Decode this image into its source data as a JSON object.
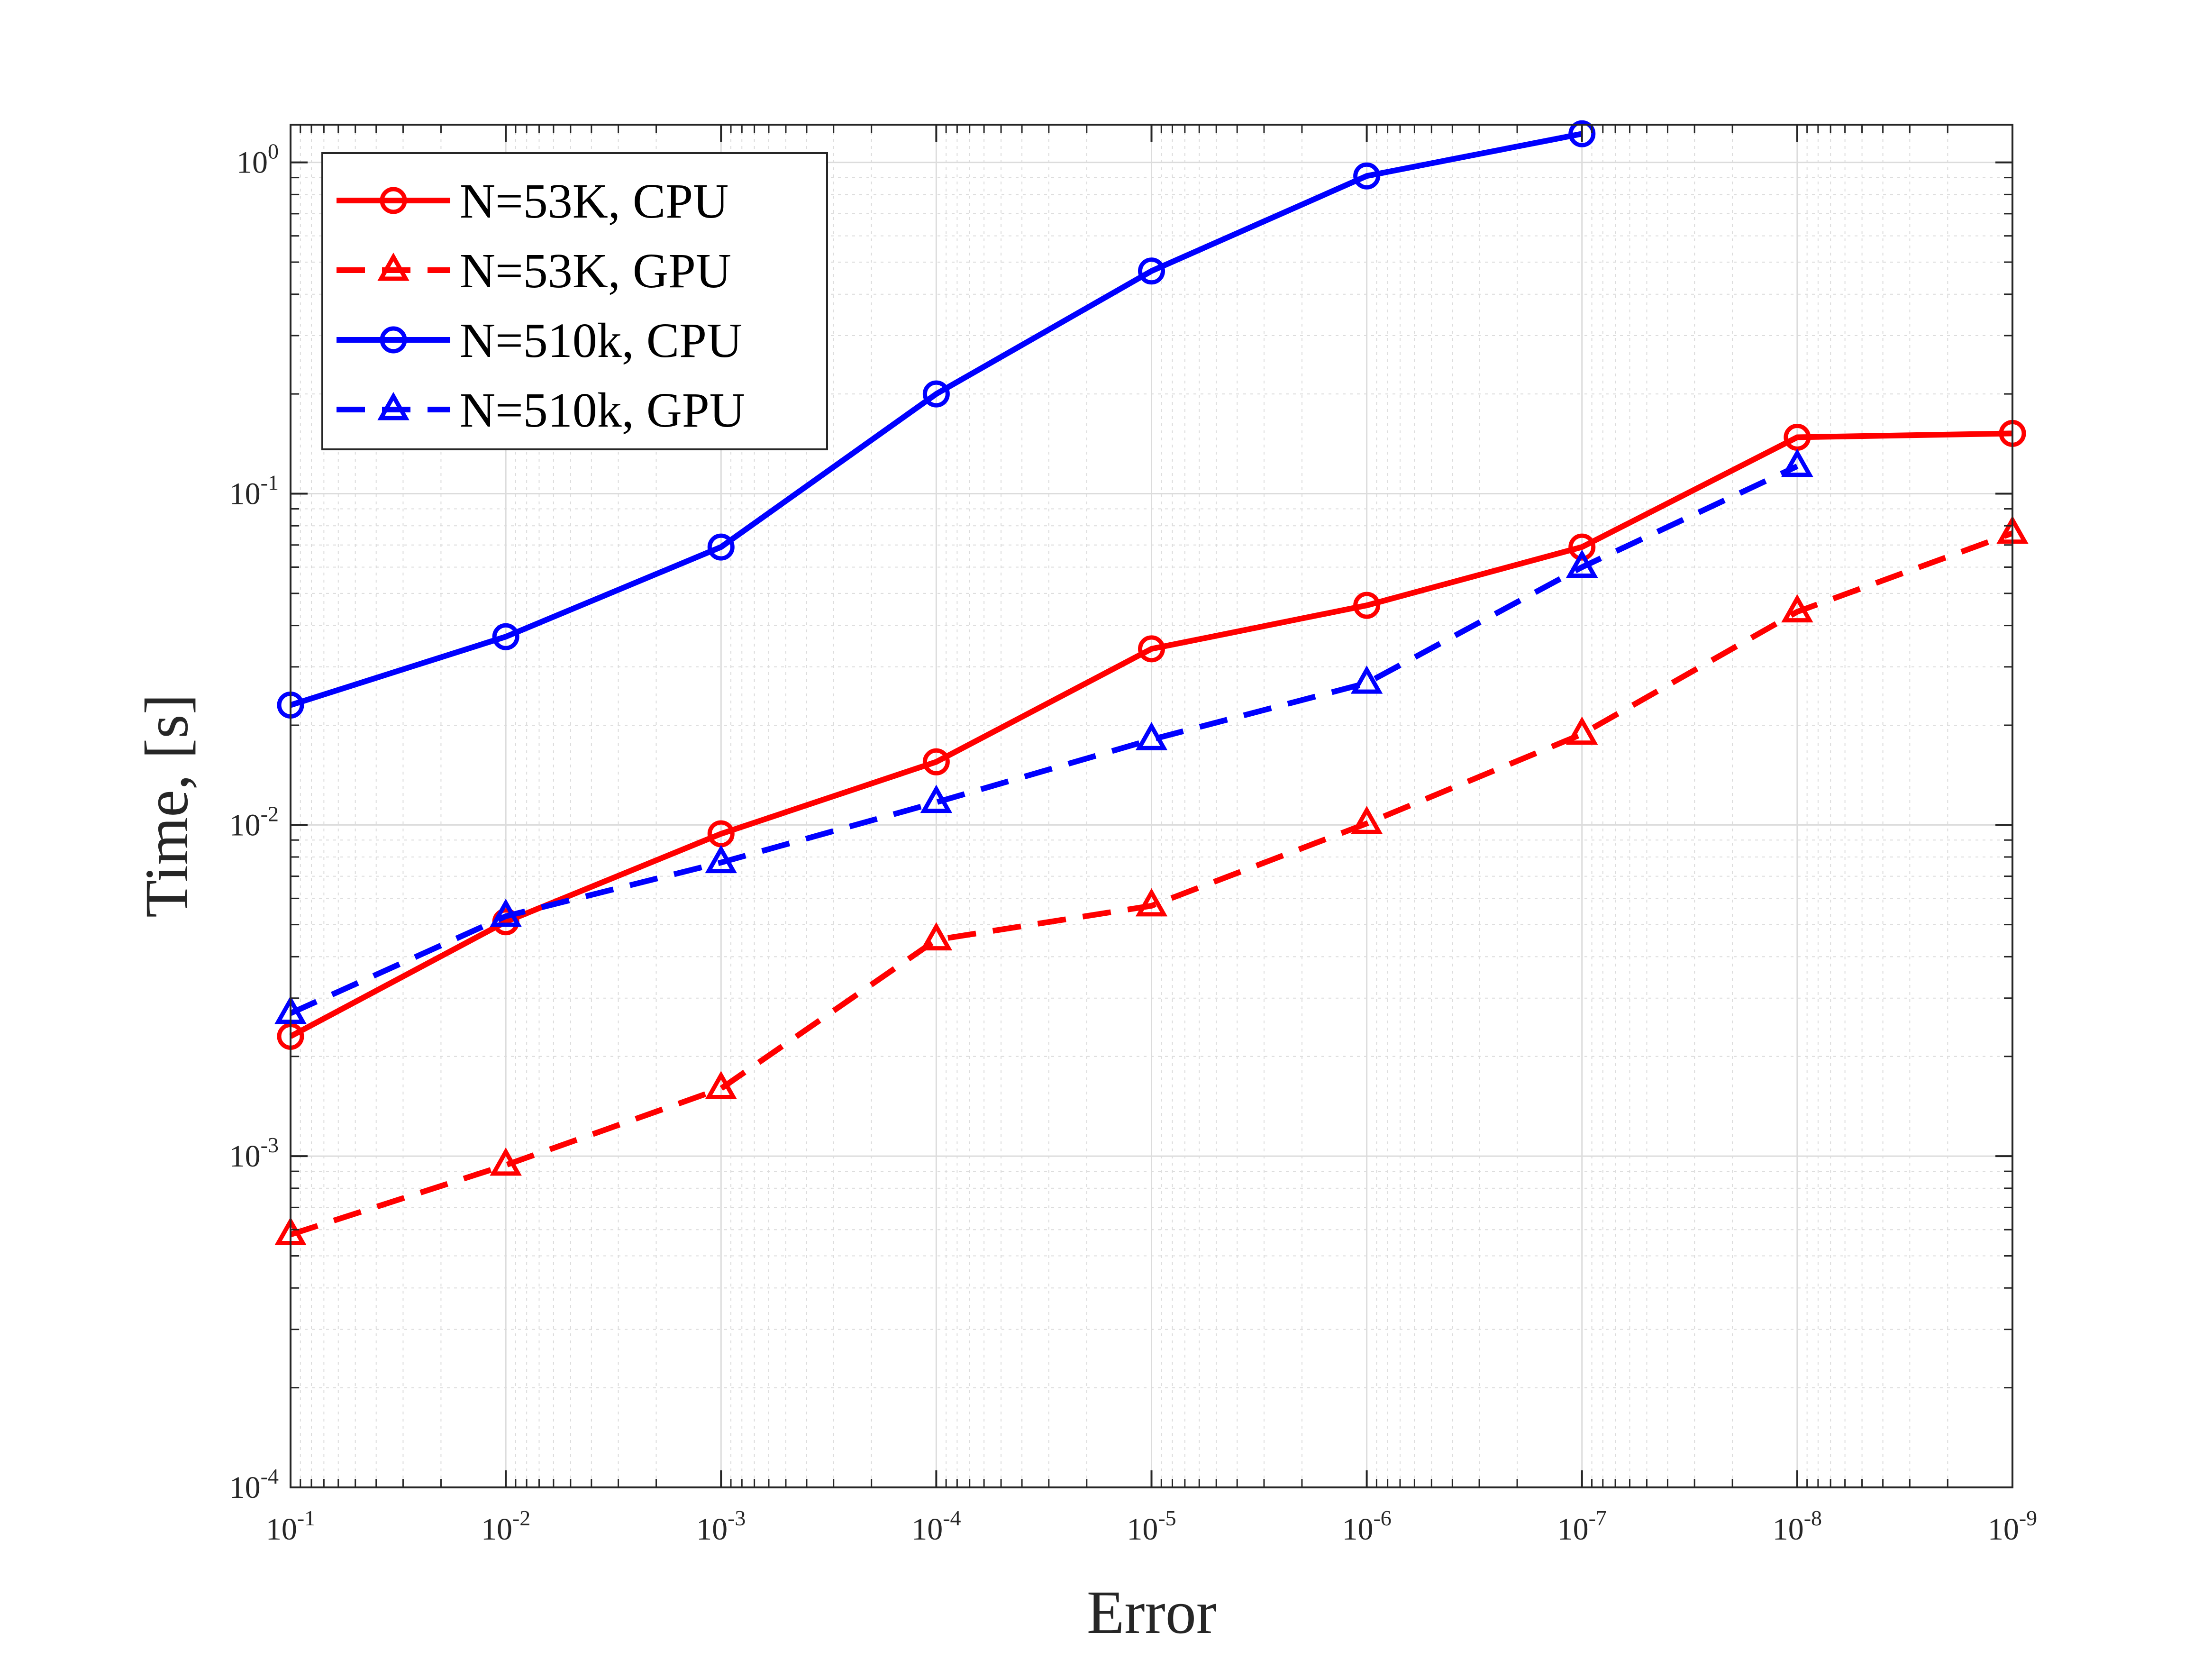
{
  "chart_data": {
    "type": "line",
    "xlabel": "Error",
    "ylabel": "Time, [s]",
    "x_scale": "log",
    "x_reversed": true,
    "y_scale": "log",
    "xlim": [
      0.1,
      1e-09
    ],
    "ylim": [
      0.0001,
      1.3
    ],
    "grid": true,
    "minor_grid": true,
    "legend_position": "top-left",
    "x": [
      0.1,
      0.01,
      0.001,
      0.0001,
      1e-05,
      1e-06,
      1e-07,
      1e-08,
      1e-09
    ],
    "x_ticks": [
      {
        "value": 0.1,
        "base": "10",
        "exp": "-1"
      },
      {
        "value": 0.01,
        "base": "10",
        "exp": "-2"
      },
      {
        "value": 0.001,
        "base": "10",
        "exp": "-3"
      },
      {
        "value": 0.0001,
        "base": "10",
        "exp": "-4"
      },
      {
        "value": 1e-05,
        "base": "10",
        "exp": "-5"
      },
      {
        "value": 1e-06,
        "base": "10",
        "exp": "-6"
      },
      {
        "value": 1e-07,
        "base": "10",
        "exp": "-7"
      },
      {
        "value": 1e-08,
        "base": "10",
        "exp": "-8"
      },
      {
        "value": 1e-09,
        "base": "10",
        "exp": "-9"
      }
    ],
    "y_ticks": [
      {
        "value": 0.0001,
        "base": "10",
        "exp": "-4"
      },
      {
        "value": 0.001,
        "base": "10",
        "exp": "-3"
      },
      {
        "value": 0.01,
        "base": "10",
        "exp": "-2"
      },
      {
        "value": 0.1,
        "base": "10",
        "exp": "-1"
      },
      {
        "value": 1,
        "base": "10",
        "exp": "0"
      }
    ],
    "series": [
      {
        "name": "N=53K, CPU",
        "color": "#ff0000",
        "line_style": "solid",
        "marker": "circle",
        "values": [
          0.0023,
          0.0051,
          0.0094,
          0.0155,
          0.034,
          0.046,
          0.069,
          0.148,
          0.152
        ]
      },
      {
        "name": "N=53K, GPU",
        "color": "#ff0000",
        "line_style": "dashed",
        "marker": "triangle",
        "values": [
          0.00058,
          0.00094,
          0.0016,
          0.0045,
          0.0057,
          0.0101,
          0.0188,
          0.044,
          0.076
        ]
      },
      {
        "name": "N=510k, CPU",
        "color": "#0000ff",
        "line_style": "solid",
        "marker": "circle",
        "values": [
          0.023,
          0.037,
          0.069,
          0.2,
          0.47,
          0.91,
          1.22,
          null,
          null
        ]
      },
      {
        "name": "N=510k, GPU",
        "color": "#0000ff",
        "line_style": "dashed",
        "marker": "triangle",
        "values": [
          0.0027,
          0.0053,
          0.0077,
          0.0117,
          0.0181,
          0.0268,
          0.06,
          0.121,
          null
        ]
      }
    ]
  }
}
